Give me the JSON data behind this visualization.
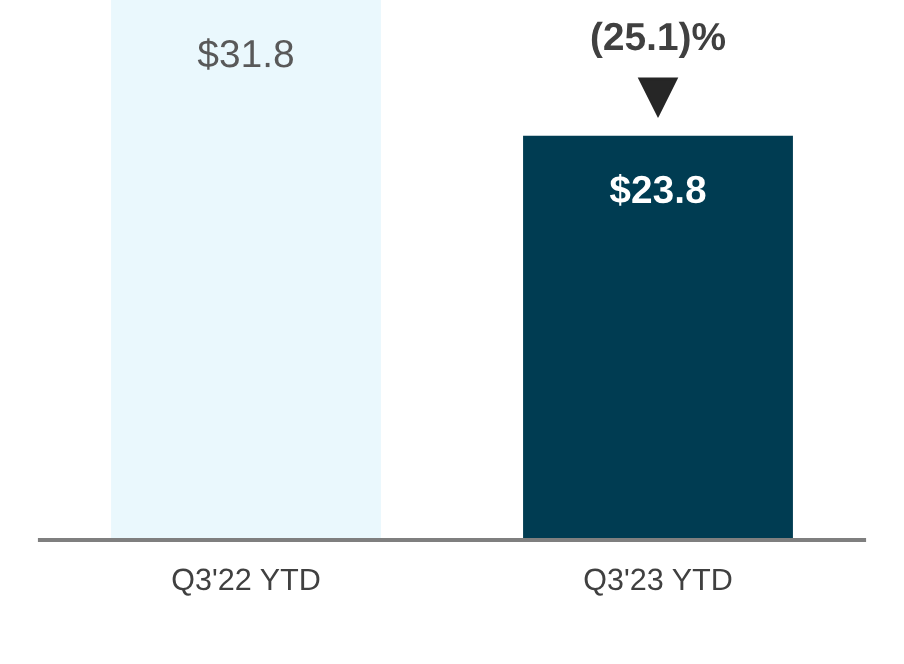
{
  "chart_data": {
    "type": "bar",
    "categories": [
      "Q3'22 YTD",
      "Q3'23 YTD"
    ],
    "values": [
      31.8,
      23.8
    ],
    "colors": [
      "#eaf8fd",
      "#003c52"
    ],
    "value_labels": [
      "$31.8",
      "$23.8"
    ],
    "annotations": [
      {
        "text": "(25.1)%",
        "x": "Q3'23 YTD",
        "y": 23.8
      }
    ]
  }
}
